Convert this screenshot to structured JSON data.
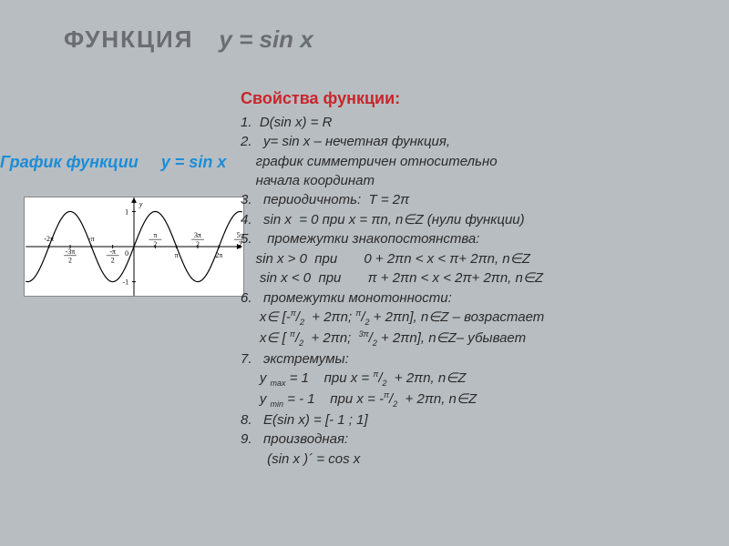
{
  "title": {
    "label": "ФУНКЦИЯ",
    "expr": "y = sin x"
  },
  "graph_label": {
    "text": "График функции",
    "expr": "y = sin x"
  },
  "properties": {
    "heading": "Свойства функции:",
    "lines": [
      "1.  D(sin x) = R",
      "2.   y= sin x – нечетная функция,",
      "    график симметричен относительно",
      "    начала координат",
      "3.   периодичноть:  T = 2π",
      "4.   sin x  = 0 при x = πn, n∈Z (нули функции)",
      "5.    промежутки знакопостоянства:",
      "    sin x > 0  при       0 + 2πn < x < π+ 2πn, n∈Z",
      "     sin x < 0  при       π + 2πn < x < 2π+ 2πn, n∈Z",
      "6.   промежутки монотонности:",
      "     x∈ [-π/2  + 2πn; π/2 + 2πn], n∈Z – возрастает",
      "     x∈ [ π/2  + 2πn;  3π/2 + 2πn], n∈Z– убывает",
      "7.   экстремумы:",
      "     y max = 1    при x = π/2  + 2πn, n∈Z",
      "     y min = - 1    при x = -π/2  + 2πn, n∈Z",
      "8.   E(sin x) = [- 1 ; 1]",
      "9.   производная:",
      "       (sin x )´ = cos x"
    ]
  },
  "graph": {
    "background": "#ffffff",
    "axis_color": "#000000",
    "curve_color": "#000000",
    "line_width": 1.2,
    "xlim": [
      -8,
      8
    ],
    "ylim": [
      -1.4,
      1.4
    ],
    "x_ticks": [
      -6.283,
      -4.712,
      -3.1416,
      -1.5708,
      1.5708,
      3.1416,
      4.712,
      6.283,
      7.854
    ],
    "x_tick_labels": [
      "-2π",
      "-3π/2",
      "-π",
      "-π/2",
      "π/2",
      "π",
      "3π/2",
      "2π",
      "5π/2"
    ],
    "y_ticks": [
      -1,
      1
    ],
    "y_label": "y"
  }
}
